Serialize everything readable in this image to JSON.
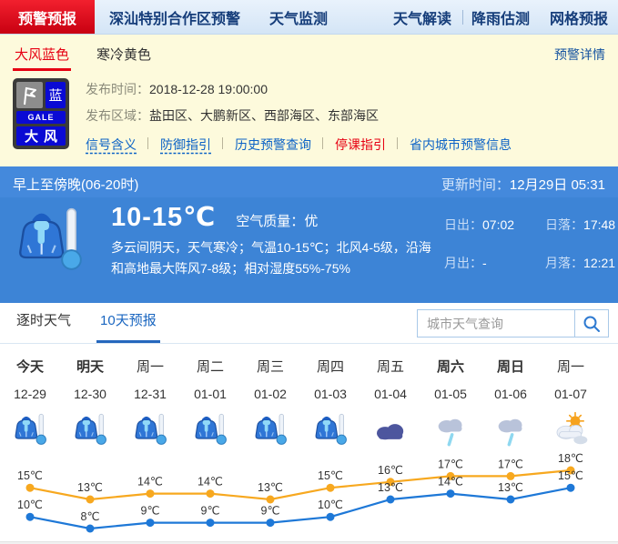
{
  "nav": {
    "tabs": [
      {
        "label": "预警预报",
        "active": true
      },
      {
        "label": "深汕特别合作区预警",
        "active": false
      },
      {
        "label": "天气监测",
        "active": false
      }
    ],
    "right_links": [
      {
        "label": "天气解读",
        "divider": true
      },
      {
        "label": "降雨估测",
        "divider": false
      },
      {
        "label": "网格预报",
        "divider": false
      }
    ]
  },
  "warning_bar": {
    "tabs": [
      {
        "label": "大风蓝色",
        "active": true
      },
      {
        "label": "寒冷黄色",
        "active": false
      }
    ],
    "detail_link": "预警详情"
  },
  "alert": {
    "icon": {
      "name": "gale-blue-signal",
      "badge": "蓝",
      "code": "GALE",
      "title": "大风"
    },
    "publish_time_label": "发布时间：",
    "publish_time": "2018-12-28 19:00:00",
    "area_label": "发布区域：",
    "area": "盐田区、大鹏新区、西部海区、东部海区",
    "links": [
      {
        "label": "信号含义",
        "dashed": true,
        "red": false
      },
      {
        "label": "防御指引",
        "dashed": true,
        "red": false
      },
      {
        "label": "历史预警查询",
        "dashed": false,
        "red": false
      },
      {
        "label": "停课指引",
        "dashed": false,
        "red": true
      },
      {
        "label": "省内城市预警信息",
        "dashed": false,
        "red": false
      }
    ]
  },
  "current": {
    "period": "早上至傍晚(06-20时)",
    "update_label": "更新时间：",
    "update_time": "12月29日 05:31",
    "temp_range": "10-15℃",
    "air_label": "空气质量：",
    "air_value": "优",
    "weather_icon": "cold",
    "description": "多云间阴天，天气寒冷；气温10-15℃；北风4-5级，沿海和高地最大阵风7-8级；相对湿度55%-75%",
    "sun_moon": [
      {
        "label": "日出：",
        "value": "07:02"
      },
      {
        "label": "日落：",
        "value": "17:48"
      },
      {
        "label": "月出：",
        "value": "-"
      },
      {
        "label": "月落：",
        "value": "12:21"
      }
    ]
  },
  "forecast": {
    "tabs": [
      {
        "label": "逐时天气",
        "active": false
      },
      {
        "label": "10天预报",
        "active": true
      }
    ],
    "search_placeholder": "城市天气查询",
    "days": [
      {
        "name": "今天",
        "date": "12-29",
        "icon": "cold",
        "bold": true
      },
      {
        "name": "明天",
        "date": "12-30",
        "icon": "cold",
        "bold": true
      },
      {
        "name": "周一",
        "date": "12-31",
        "icon": "cold",
        "bold": false
      },
      {
        "name": "周二",
        "date": "01-01",
        "icon": "cold",
        "bold": false
      },
      {
        "name": "周三",
        "date": "01-02",
        "icon": "cold",
        "bold": false
      },
      {
        "name": "周四",
        "date": "01-03",
        "icon": "cold",
        "bold": false
      },
      {
        "name": "周五",
        "date": "01-04",
        "icon": "overcast",
        "bold": false
      },
      {
        "name": "周六",
        "date": "01-05",
        "icon": "light-rain",
        "bold": true
      },
      {
        "name": "周日",
        "date": "01-06",
        "icon": "light-rain",
        "bold": true
      },
      {
        "name": "周一",
        "date": "01-07",
        "icon": "cloudy-sun",
        "bold": false
      }
    ]
  },
  "chart_data": {
    "type": "line",
    "categories": [
      "12-29",
      "12-30",
      "12-31",
      "01-01",
      "01-02",
      "01-03",
      "01-04",
      "01-05",
      "01-06",
      "01-07"
    ],
    "series": [
      {
        "name": "high",
        "color": "#f7a81f",
        "values": [
          15,
          13,
          14,
          14,
          13,
          15,
          16,
          17,
          17,
          18
        ]
      },
      {
        "name": "low",
        "color": "#1e78d7",
        "values": [
          10,
          8,
          9,
          9,
          9,
          10,
          13,
          14,
          13,
          15
        ]
      }
    ],
    "unit": "℃",
    "ylim": [
      8,
      18
    ],
    "grid": false,
    "legend": "none"
  },
  "colors": {
    "accent_red": "#e60012",
    "nav_text": "#153d7a",
    "link_blue": "#0b62c6",
    "panel_blue": "#3d84d6",
    "signal_blue": "#0a0ad4"
  }
}
